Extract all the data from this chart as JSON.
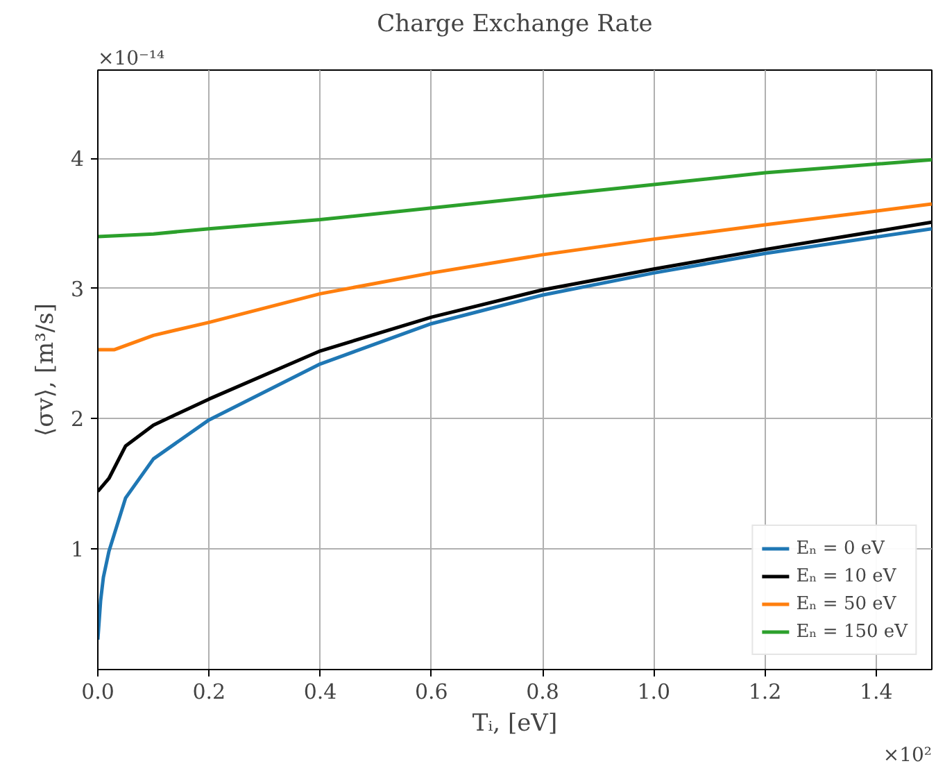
{
  "chart_data": {
    "type": "line",
    "title": "Charge Exchange Rate",
    "xlabel": "Tᵢ, [eV]",
    "ylabel": "⟨σv⟩, [m³/s]",
    "annotations": [
      "×10⁻¹⁴",
      "×10²"
    ],
    "xlim": [
      0,
      1.5
    ],
    "ylim": [
      0.07,
      4.68
    ],
    "xticks": [
      {
        "value": 0,
        "label": "0.0"
      },
      0.2,
      0.4,
      0.6,
      0.8,
      {
        "value": 1,
        "label": "1.0"
      },
      1.2,
      1.4
    ],
    "yticks": [
      1,
      2,
      3,
      4
    ],
    "grid": true,
    "legend": "bottom right",
    "line_style": "solid",
    "marker": "none",
    "series": [
      {
        "name": "Eₙ = 0 eV",
        "color": "#1f77b4",
        "x": [
          0,
          0.005,
          0.01,
          0.02,
          0.05,
          0.1,
          0.2,
          0.4,
          0.6,
          0.8,
          1.0,
          1.2,
          1.5
        ],
        "values": [
          0.3,
          0.6,
          0.78,
          0.98,
          1.39,
          1.69,
          1.99,
          2.42,
          2.73,
          2.95,
          3.12,
          3.27,
          3.46
        ]
      },
      {
        "name": "Eₙ = 10 eV",
        "color": "#000000",
        "x": [
          0,
          0.02,
          0.05,
          0.1,
          0.2,
          0.4,
          0.6,
          0.8,
          1.0,
          1.2,
          1.5
        ],
        "values": [
          1.44,
          1.54,
          1.79,
          1.95,
          2.15,
          2.52,
          2.78,
          2.99,
          3.15,
          3.3,
          3.51
        ]
      },
      {
        "name": "Eₙ = 50 eV",
        "color": "#ff7f0e",
        "x": [
          0,
          0.03,
          0.1,
          0.2,
          0.4,
          0.6,
          0.8,
          1.0,
          1.2,
          1.5
        ],
        "values": [
          2.53,
          2.53,
          2.64,
          2.74,
          2.96,
          3.12,
          3.26,
          3.38,
          3.49,
          3.65
        ]
      },
      {
        "name": "Eₙ = 150 eV",
        "color": "#2ca02c",
        "x": [
          0,
          0.1,
          0.2,
          0.4,
          0.6,
          0.8,
          1.0,
          1.2,
          1.5
        ],
        "values": [
          3.4,
          3.42,
          3.46,
          3.53,
          3.62,
          3.71,
          3.8,
          3.89,
          3.99
        ]
      }
    ]
  }
}
